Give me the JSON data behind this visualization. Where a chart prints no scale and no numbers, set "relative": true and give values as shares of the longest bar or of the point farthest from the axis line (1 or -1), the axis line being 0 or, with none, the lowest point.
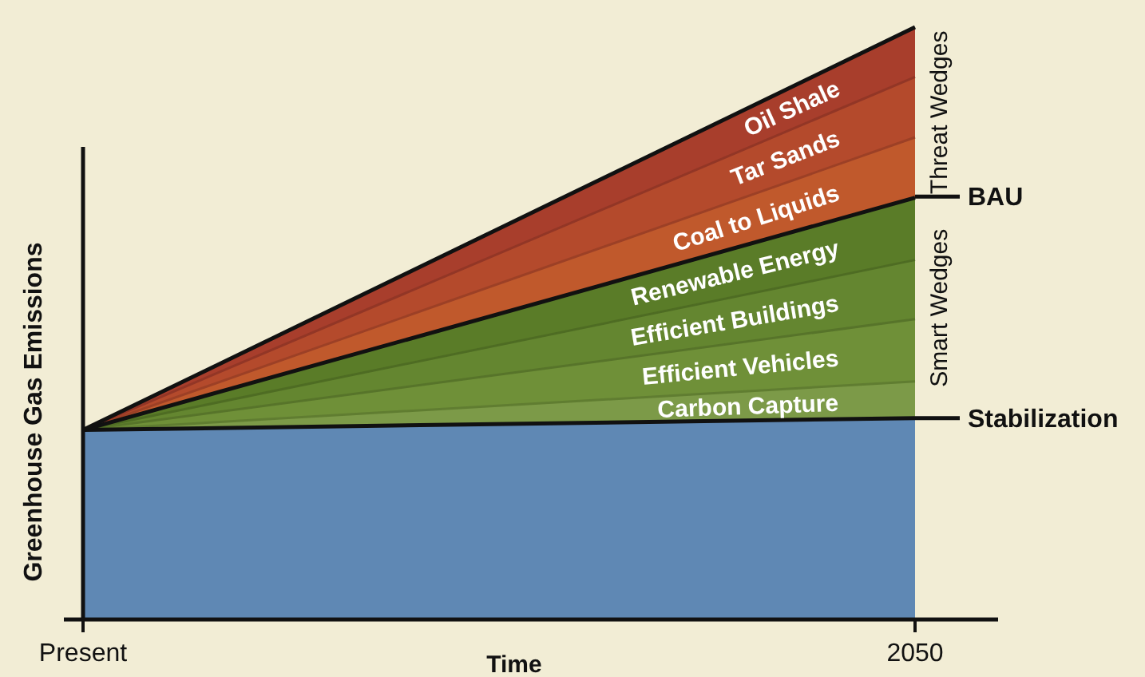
{
  "chart_data": {
    "type": "area",
    "relative": true,
    "stacked": true,
    "xlabel": "Time",
    "ylabel": "Greenhouse Gas Emissions",
    "categories": [
      "Present",
      "2050"
    ],
    "series": [
      {
        "color": "#5f88b4",
        "values": [
          0.32,
          0.34
        ]
      },
      {
        "name": "Carbon Capture",
        "color": "#7c9a48",
        "values": [
          0,
          0.062
        ]
      },
      {
        "name": "Efficient Vehicles",
        "color": "#6f9038",
        "values": [
          0,
          0.105
        ]
      },
      {
        "name": "Efficient Buildings",
        "color": "#648630",
        "values": [
          0,
          0.1
        ]
      },
      {
        "name": "Renewable Energy",
        "color": "#5a7c28",
        "values": [
          0,
          0.105
        ]
      },
      {
        "name": "Coal to Liquids",
        "color": "#c0592c",
        "values": [
          0,
          0.102
        ]
      },
      {
        "name": "Tar Sands",
        "color": "#b44a2c",
        "values": [
          0,
          0.102
        ]
      },
      {
        "name": "Oil Shale",
        "color": "#a83e2c",
        "values": [
          0,
          0.084
        ]
      }
    ],
    "annotations": [
      {
        "text": "BAU",
        "x": "2050",
        "y": 0.714
      },
      {
        "text": "Stabilization",
        "x": "2050",
        "y": 0.34
      },
      "Smart Wedges",
      "Threat Wedges"
    ]
  }
}
